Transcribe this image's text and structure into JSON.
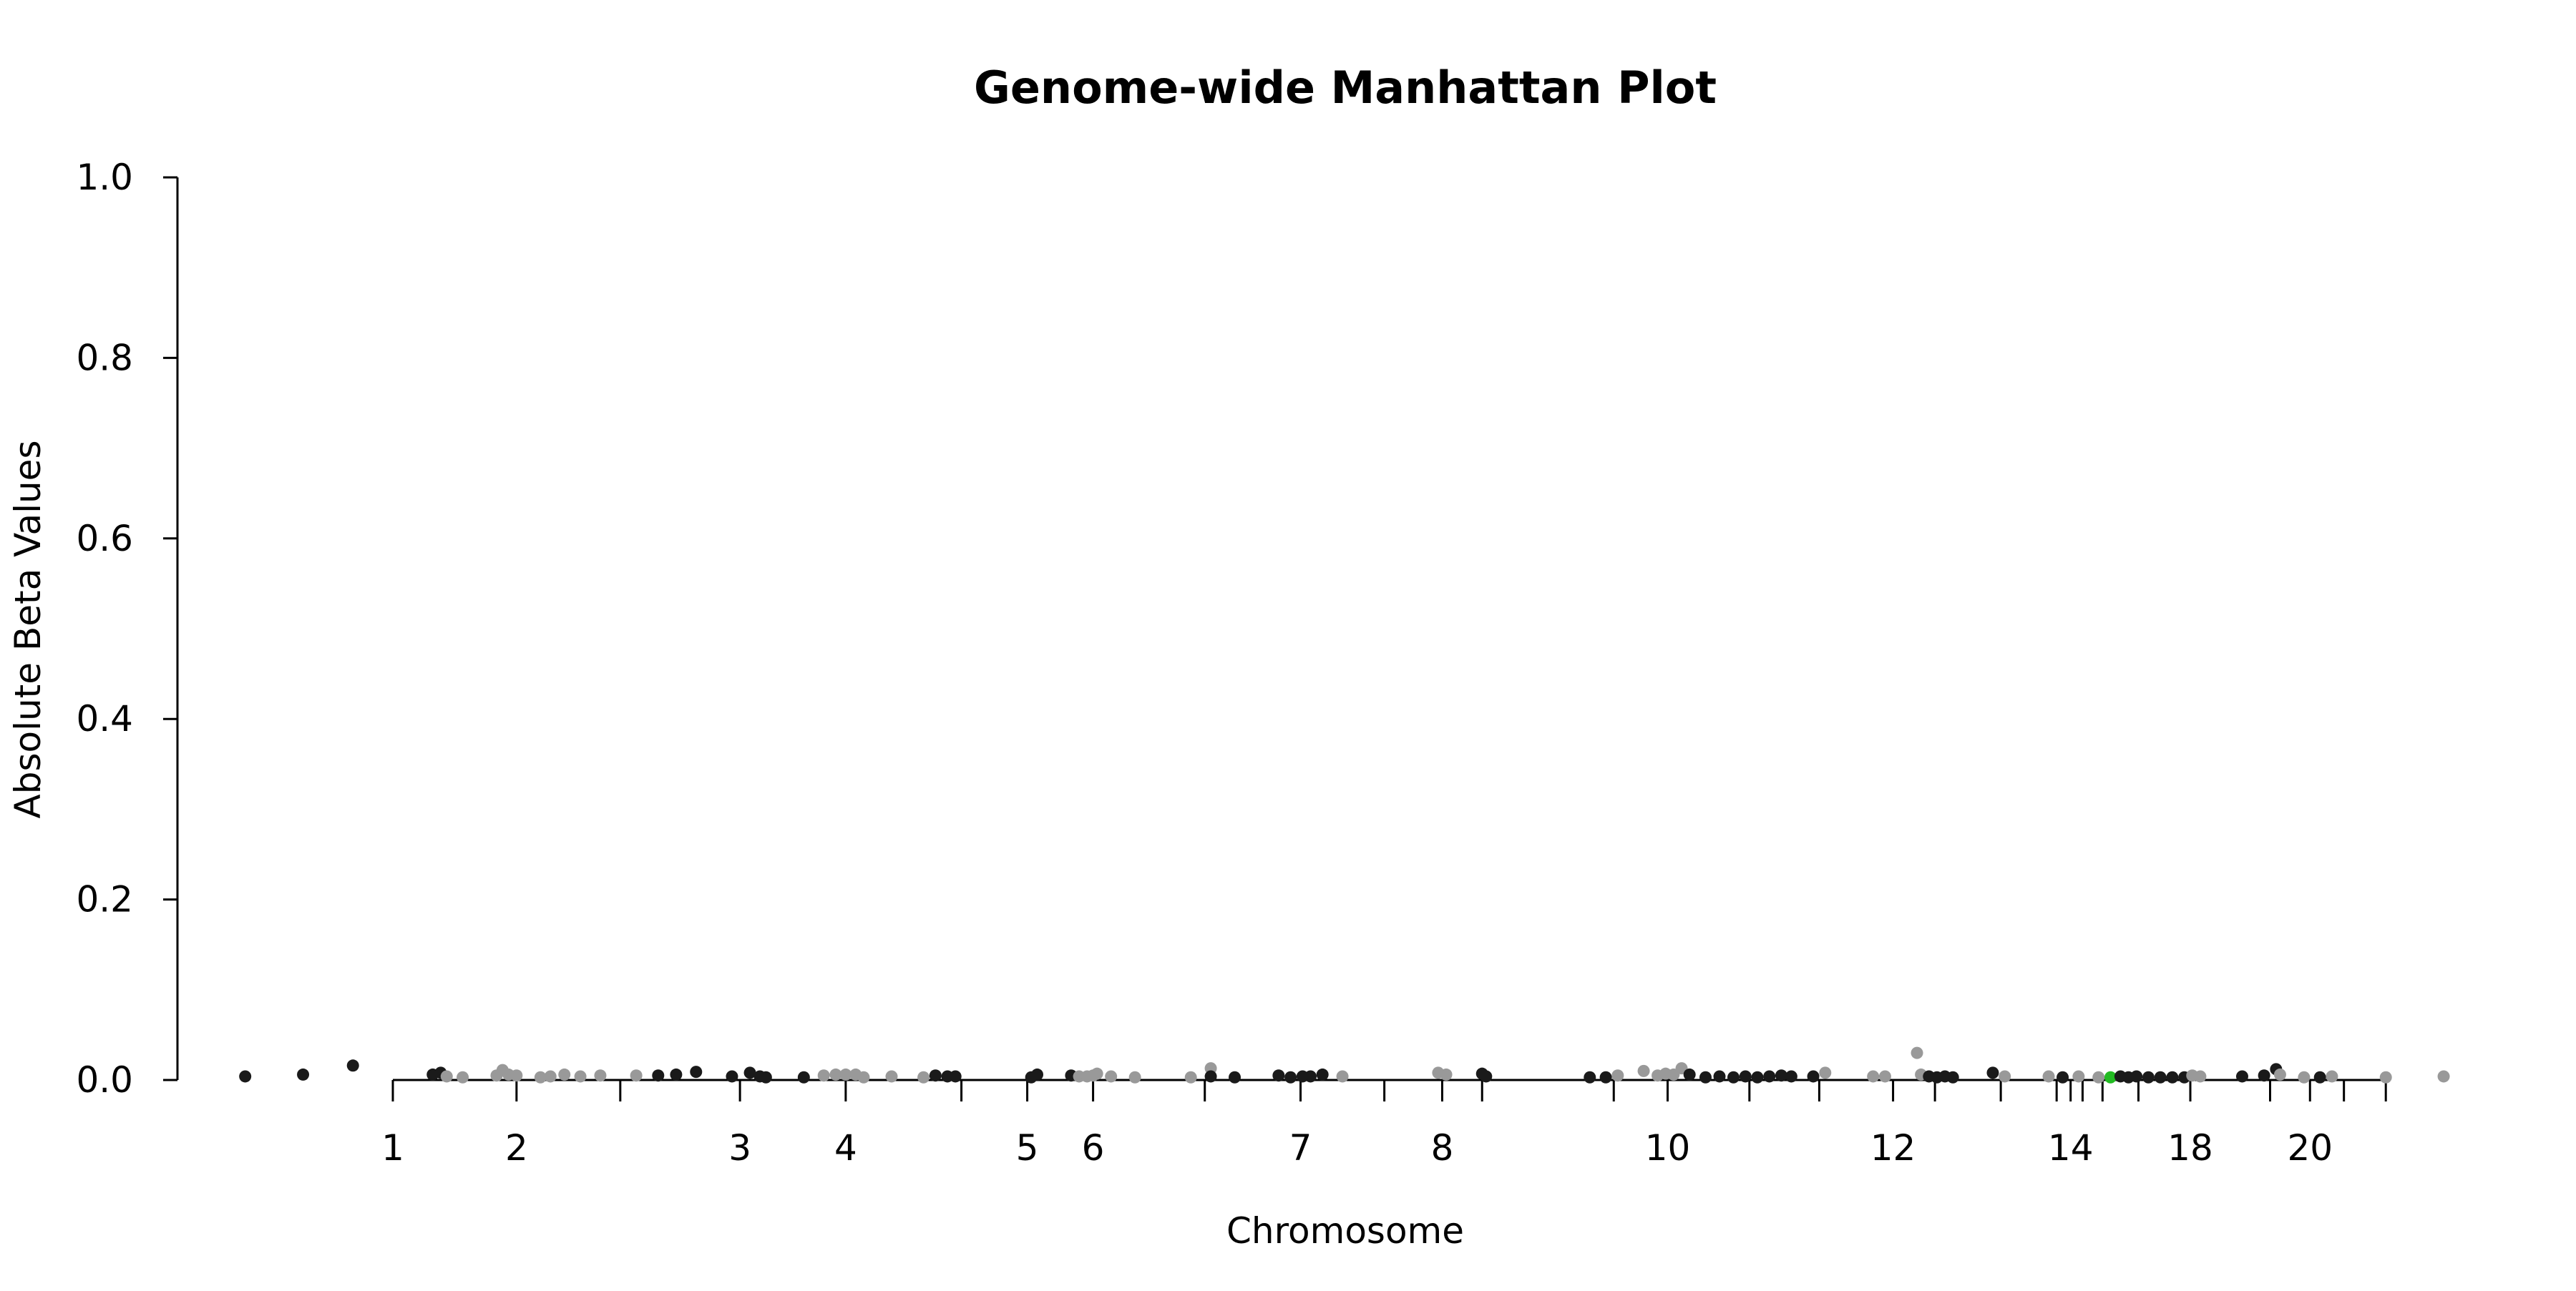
{
  "chart_data": {
    "type": "scatter",
    "title": "Genome-wide Manhattan Plot",
    "xlabel": "Chromosome",
    "ylabel": "Absolute Beta Values",
    "ylim": [
      0,
      1.0
    ],
    "yticks": [
      "0.0",
      "0.2",
      "0.4",
      "0.6",
      "0.8",
      "1.0"
    ],
    "xticks": [
      {
        "label": "1",
        "pos": 0.0
      },
      {
        "label": "2",
        "pos": 0.062
      },
      {
        "label": "",
        "pos": 0.114
      },
      {
        "label": "3",
        "pos": 0.174
      },
      {
        "label": "4",
        "pos": 0.227
      },
      {
        "label": "",
        "pos": 0.285
      },
      {
        "label": "5",
        "pos": 0.318
      },
      {
        "label": "6",
        "pos": 0.351
      },
      {
        "label": "",
        "pos": 0.407
      },
      {
        "label": "7",
        "pos": 0.455
      },
      {
        "label": "",
        "pos": 0.497
      },
      {
        "label": "8",
        "pos": 0.526
      },
      {
        "label": "",
        "pos": 0.546
      },
      {
        "label": "",
        "pos": 0.612
      },
      {
        "label": "10",
        "pos": 0.639
      },
      {
        "label": "",
        "pos": 0.68
      },
      {
        "label": "",
        "pos": 0.715
      },
      {
        "label": "12",
        "pos": 0.752
      },
      {
        "label": "",
        "pos": 0.773
      },
      {
        "label": "",
        "pos": 0.806
      },
      {
        "label": "",
        "pos": 0.834
      },
      {
        "label": "14",
        "pos": 0.841
      },
      {
        "label": "",
        "pos": 0.847
      },
      {
        "label": "",
        "pos": 0.857
      },
      {
        "label": "",
        "pos": 0.875
      },
      {
        "label": "18",
        "pos": 0.901
      },
      {
        "label": "",
        "pos": 0.941
      },
      {
        "label": "20",
        "pos": 0.961
      },
      {
        "label": "",
        "pos": 0.978
      },
      {
        "label": "",
        "pos": 0.999
      }
    ],
    "point_colors": {
      "odd": "#1a1a1a",
      "even": "#999999",
      "highlight": "#22bb22"
    },
    "points": [
      {
        "x": -0.074,
        "y": 0.004,
        "c": "odd"
      },
      {
        "x": -0.045,
        "y": 0.006,
        "c": "odd"
      },
      {
        "x": -0.02,
        "y": 0.016,
        "c": "odd"
      },
      {
        "x": 0.02,
        "y": 0.006,
        "c": "odd"
      },
      {
        "x": 0.024,
        "y": 0.008,
        "c": "odd"
      },
      {
        "x": 0.027,
        "y": 0.004,
        "c": "even"
      },
      {
        "x": 0.035,
        "y": 0.003,
        "c": "even"
      },
      {
        "x": 0.052,
        "y": 0.005,
        "c": "even"
      },
      {
        "x": 0.055,
        "y": 0.011,
        "c": "even"
      },
      {
        "x": 0.058,
        "y": 0.006,
        "c": "even"
      },
      {
        "x": 0.062,
        "y": 0.005,
        "c": "even"
      },
      {
        "x": 0.074,
        "y": 0.003,
        "c": "even"
      },
      {
        "x": 0.079,
        "y": 0.004,
        "c": "even"
      },
      {
        "x": 0.086,
        "y": 0.006,
        "c": "even"
      },
      {
        "x": 0.094,
        "y": 0.004,
        "c": "even"
      },
      {
        "x": 0.104,
        "y": 0.005,
        "c": "even"
      },
      {
        "x": 0.122,
        "y": 0.005,
        "c": "even"
      },
      {
        "x": 0.133,
        "y": 0.005,
        "c": "odd"
      },
      {
        "x": 0.142,
        "y": 0.006,
        "c": "odd"
      },
      {
        "x": 0.152,
        "y": 0.009,
        "c": "odd"
      },
      {
        "x": 0.17,
        "y": 0.004,
        "c": "odd"
      },
      {
        "x": 0.179,
        "y": 0.008,
        "c": "odd"
      },
      {
        "x": 0.184,
        "y": 0.004,
        "c": "odd"
      },
      {
        "x": 0.187,
        "y": 0.003,
        "c": "odd"
      },
      {
        "x": 0.206,
        "y": 0.003,
        "c": "odd"
      },
      {
        "x": 0.216,
        "y": 0.005,
        "c": "even"
      },
      {
        "x": 0.222,
        "y": 0.006,
        "c": "even"
      },
      {
        "x": 0.227,
        "y": 0.006,
        "c": "even"
      },
      {
        "x": 0.232,
        "y": 0.006,
        "c": "even"
      },
      {
        "x": 0.236,
        "y": 0.003,
        "c": "even"
      },
      {
        "x": 0.25,
        "y": 0.004,
        "c": "even"
      },
      {
        "x": 0.266,
        "y": 0.003,
        "c": "even"
      },
      {
        "x": 0.272,
        "y": 0.005,
        "c": "odd"
      },
      {
        "x": 0.278,
        "y": 0.004,
        "c": "odd"
      },
      {
        "x": 0.282,
        "y": 0.004,
        "c": "odd"
      },
      {
        "x": 0.32,
        "y": 0.003,
        "c": "odd"
      },
      {
        "x": 0.323,
        "y": 0.006,
        "c": "odd"
      },
      {
        "x": 0.34,
        "y": 0.005,
        "c": "odd"
      },
      {
        "x": 0.344,
        "y": 0.004,
        "c": "even"
      },
      {
        "x": 0.348,
        "y": 0.004,
        "c": "even"
      },
      {
        "x": 0.351,
        "y": 0.005,
        "c": "even"
      },
      {
        "x": 0.353,
        "y": 0.007,
        "c": "even"
      },
      {
        "x": 0.36,
        "y": 0.004,
        "c": "even"
      },
      {
        "x": 0.372,
        "y": 0.003,
        "c": "even"
      },
      {
        "x": 0.4,
        "y": 0.003,
        "c": "even"
      },
      {
        "x": 0.41,
        "y": 0.013,
        "c": "even"
      },
      {
        "x": 0.41,
        "y": 0.004,
        "c": "odd"
      },
      {
        "x": 0.422,
        "y": 0.003,
        "c": "odd"
      },
      {
        "x": 0.444,
        "y": 0.005,
        "c": "odd"
      },
      {
        "x": 0.45,
        "y": 0.003,
        "c": "odd"
      },
      {
        "x": 0.456,
        "y": 0.004,
        "c": "odd"
      },
      {
        "x": 0.46,
        "y": 0.004,
        "c": "odd"
      },
      {
        "x": 0.466,
        "y": 0.006,
        "c": "odd"
      },
      {
        "x": 0.476,
        "y": 0.004,
        "c": "even"
      },
      {
        "x": 0.524,
        "y": 0.008,
        "c": "even"
      },
      {
        "x": 0.528,
        "y": 0.006,
        "c": "even"
      },
      {
        "x": 0.546,
        "y": 0.007,
        "c": "odd"
      },
      {
        "x": 0.548,
        "y": 0.004,
        "c": "odd"
      },
      {
        "x": 0.6,
        "y": 0.003,
        "c": "odd"
      },
      {
        "x": 0.608,
        "y": 0.003,
        "c": "odd"
      },
      {
        "x": 0.614,
        "y": 0.005,
        "c": "even"
      },
      {
        "x": 0.627,
        "y": 0.01,
        "c": "even"
      },
      {
        "x": 0.634,
        "y": 0.005,
        "c": "even"
      },
      {
        "x": 0.638,
        "y": 0.007,
        "c": "even"
      },
      {
        "x": 0.642,
        "y": 0.006,
        "c": "even"
      },
      {
        "x": 0.646,
        "y": 0.013,
        "c": "even"
      },
      {
        "x": 0.65,
        "y": 0.006,
        "c": "odd"
      },
      {
        "x": 0.658,
        "y": 0.003,
        "c": "odd"
      },
      {
        "x": 0.665,
        "y": 0.004,
        "c": "odd"
      },
      {
        "x": 0.672,
        "y": 0.003,
        "c": "odd"
      },
      {
        "x": 0.678,
        "y": 0.004,
        "c": "odd"
      },
      {
        "x": 0.684,
        "y": 0.003,
        "c": "odd"
      },
      {
        "x": 0.69,
        "y": 0.004,
        "c": "odd"
      },
      {
        "x": 0.696,
        "y": 0.005,
        "c": "odd"
      },
      {
        "x": 0.701,
        "y": 0.004,
        "c": "odd"
      },
      {
        "x": 0.712,
        "y": 0.004,
        "c": "odd"
      },
      {
        "x": 0.718,
        "y": 0.008,
        "c": "even"
      },
      {
        "x": 0.742,
        "y": 0.004,
        "c": "even"
      },
      {
        "x": 0.748,
        "y": 0.004,
        "c": "even"
      },
      {
        "x": 0.764,
        "y": 0.03,
        "c": "even"
      },
      {
        "x": 0.766,
        "y": 0.006,
        "c": "even"
      },
      {
        "x": 0.77,
        "y": 0.004,
        "c": "odd"
      },
      {
        "x": 0.774,
        "y": 0.003,
        "c": "odd"
      },
      {
        "x": 0.778,
        "y": 0.004,
        "c": "odd"
      },
      {
        "x": 0.782,
        "y": 0.003,
        "c": "odd"
      },
      {
        "x": 0.802,
        "y": 0.008,
        "c": "odd"
      },
      {
        "x": 0.808,
        "y": 0.004,
        "c": "even"
      },
      {
        "x": 0.83,
        "y": 0.004,
        "c": "even"
      },
      {
        "x": 0.837,
        "y": 0.003,
        "c": "odd"
      },
      {
        "x": 0.845,
        "y": 0.004,
        "c": "even"
      },
      {
        "x": 0.855,
        "y": 0.003,
        "c": "even"
      },
      {
        "x": 0.861,
        "y": 0.003,
        "c": "highlight"
      },
      {
        "x": 0.866,
        "y": 0.004,
        "c": "odd"
      },
      {
        "x": 0.87,
        "y": 0.003,
        "c": "odd"
      },
      {
        "x": 0.874,
        "y": 0.004,
        "c": "odd"
      },
      {
        "x": 0.88,
        "y": 0.003,
        "c": "odd"
      },
      {
        "x": 0.886,
        "y": 0.003,
        "c": "odd"
      },
      {
        "x": 0.892,
        "y": 0.003,
        "c": "odd"
      },
      {
        "x": 0.898,
        "y": 0.003,
        "c": "odd"
      },
      {
        "x": 0.902,
        "y": 0.005,
        "c": "even"
      },
      {
        "x": 0.906,
        "y": 0.004,
        "c": "even"
      },
      {
        "x": 0.927,
        "y": 0.004,
        "c": "odd"
      },
      {
        "x": 0.938,
        "y": 0.005,
        "c": "odd"
      },
      {
        "x": 0.944,
        "y": 0.012,
        "c": "odd"
      },
      {
        "x": 0.946,
        "y": 0.006,
        "c": "even"
      },
      {
        "x": 0.958,
        "y": 0.003,
        "c": "even"
      },
      {
        "x": 0.966,
        "y": 0.003,
        "c": "odd"
      },
      {
        "x": 0.972,
        "y": 0.004,
        "c": "even"
      },
      {
        "x": 0.999,
        "y": 0.003,
        "c": "even"
      },
      {
        "x": 1.028,
        "y": 0.004,
        "c": "even"
      }
    ]
  }
}
